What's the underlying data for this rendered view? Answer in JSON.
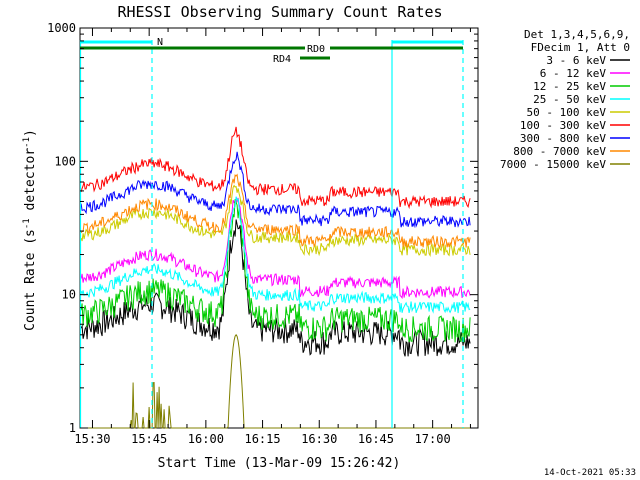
{
  "chart_data": {
    "type": "line",
    "title": "RHESSI Observing Summary Count Rates",
    "xlabel": "Start Time (13-Mar-09 15:26:42)",
    "ylabel_main": "Count Rate (s",
    "ylabel_sup1": "-1",
    "ylabel_mid": " detector",
    "ylabel_sup2": "-1",
    "ylabel_end": ")",
    "y_scale": "log",
    "ylim": [
      1,
      1000
    ],
    "xlim": [
      "15:26:42",
      "17:12:00"
    ],
    "x_ticks": [
      "15:30",
      "15:45",
      "16:00",
      "16:15",
      "16:30",
      "16:45",
      "17:00"
    ],
    "y_ticks": [
      "1",
      "10",
      "100",
      "1000"
    ],
    "legend_header": [
      "Det 1,3,4,5,6,9,",
      "FDecim 1, Att 0"
    ],
    "series": [
      {
        "name": "3 - 6 keV",
        "color": "#000000",
        "level": 5.5,
        "peak": 35
      },
      {
        "name": "6 - 12 keV",
        "color": "#ff00ff",
        "level": 13,
        "peak": 55
      },
      {
        "name": "12 - 25 keV",
        "color": "#00cc00",
        "level": 7,
        "peak": 45
      },
      {
        "name": "25 - 50 keV",
        "color": "#00ffff",
        "level": 10,
        "peak": 50
      },
      {
        "name": "50 - 100 keV",
        "color": "#cccc00",
        "level": 27,
        "peak": 65
      },
      {
        "name": "100 - 300 keV",
        "color": "#ff0000",
        "level": 62,
        "peak": 165
      },
      {
        "name": "300 - 800 keV",
        "color": "#0000ff",
        "level": 44,
        "peak": 110
      },
      {
        "name": "800 - 7000 keV",
        "color": "#ff8800",
        "level": 31,
        "peak": 75
      },
      {
        "name": "7000 - 15000 keV",
        "color": "#808000",
        "level": 1,
        "peak": 5
      }
    ],
    "annotations": {
      "night_label": "N",
      "rd0_label": "RD0",
      "rd4_label": "RD4"
    },
    "timestamp": "14-Oct-2021 05:33"
  }
}
